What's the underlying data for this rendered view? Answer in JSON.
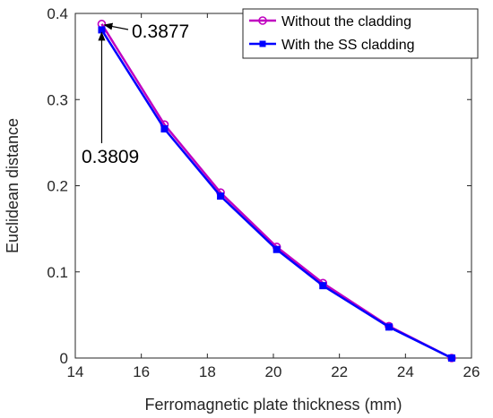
{
  "chart_data": {
    "type": "line",
    "xlabel": "Ferromagnetic plate thickness (mm)",
    "ylabel": "Euclidean distance",
    "xlim": [
      14,
      26
    ],
    "ylim": [
      0,
      0.4
    ],
    "xticks": [
      14,
      16,
      18,
      20,
      22,
      24,
      26
    ],
    "yticks": [
      0,
      0.1,
      0.2,
      0.3,
      0.4
    ],
    "xtick_labels": [
      "14",
      "16",
      "18",
      "20",
      "22",
      "24",
      "26"
    ],
    "ytick_labels": [
      "0",
      "0.1",
      "0.2",
      "0.3",
      "0.4"
    ],
    "grid": false,
    "legend_position": "top-right",
    "series": [
      {
        "name": "Without the cladding",
        "color": "#c000c0",
        "marker": "circle",
        "x": [
          14.8,
          16.7,
          18.4,
          20.1,
          21.5,
          23.5,
          25.4
        ],
        "y": [
          0.3877,
          0.271,
          0.192,
          0.129,
          0.087,
          0.037,
          0.0
        ]
      },
      {
        "name": "With the SS cladding",
        "color": "#0000ff",
        "marker": "square",
        "x": [
          14.8,
          16.7,
          18.4,
          20.1,
          21.5,
          23.5,
          25.4
        ],
        "y": [
          0.3809,
          0.266,
          0.188,
          0.126,
          0.084,
          0.036,
          0.0
        ]
      }
    ],
    "annotations": [
      {
        "text": "0.3877",
        "x": 14.8,
        "y": 0.3877
      },
      {
        "text": "0.3809",
        "x": 14.8,
        "y": 0.3809
      }
    ]
  }
}
